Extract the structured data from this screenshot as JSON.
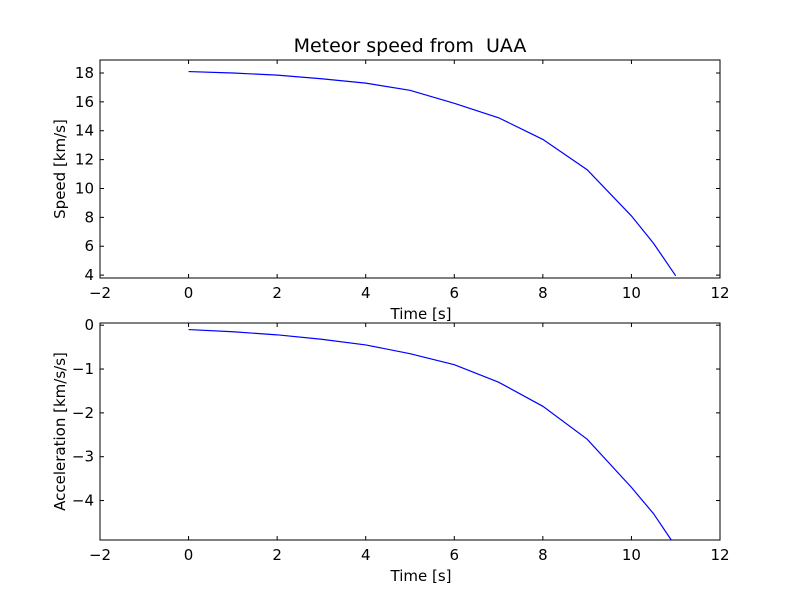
{
  "chart_data": [
    {
      "type": "line",
      "title": "Meteor speed from  UAA",
      "xlabel": "Time [s]",
      "ylabel": "Speed [km/s]",
      "xlim": [
        -2,
        12
      ],
      "ylim": [
        3.8,
        18.9
      ],
      "xticks": [
        -2,
        0,
        2,
        4,
        6,
        8,
        10,
        12
      ],
      "yticks": [
        4,
        6,
        8,
        10,
        12,
        14,
        16,
        18
      ],
      "xtick_labels": [
        "−2",
        "0",
        "2",
        "4",
        "6",
        "8",
        "10",
        "12"
      ],
      "ytick_labels": [
        "4",
        "6",
        "8",
        "10",
        "12",
        "14",
        "16",
        "18"
      ],
      "grid": false,
      "series": [
        {
          "color": "#0000ff",
          "x": [
            0,
            1,
            2,
            3,
            4,
            5,
            6,
            7,
            8,
            9,
            10,
            10.5,
            11
          ],
          "y": [
            18.1,
            18.0,
            17.85,
            17.6,
            17.3,
            16.8,
            15.9,
            14.9,
            13.4,
            11.3,
            8.1,
            6.2,
            3.95
          ]
        }
      ]
    },
    {
      "type": "line",
      "title": "",
      "xlabel": "Time [s]",
      "ylabel": "Acceleration [km/s/s]",
      "xlim": [
        -2,
        12
      ],
      "ylim": [
        -4.9,
        0.05
      ],
      "xticks": [
        -2,
        0,
        2,
        4,
        6,
        8,
        10,
        12
      ],
      "yticks": [
        0,
        -1,
        -2,
        -3,
        -4
      ],
      "xtick_labels": [
        "−2",
        "0",
        "2",
        "4",
        "6",
        "8",
        "10",
        "12"
      ],
      "ytick_labels": [
        "0",
        "−1",
        "−2",
        "−3",
        "−4"
      ],
      "grid": false,
      "series": [
        {
          "color": "#0000ff",
          "x": [
            0,
            1,
            2,
            3,
            4,
            5,
            6,
            7,
            8,
            9,
            10,
            10.5,
            10.9
          ],
          "y": [
            -0.1,
            -0.15,
            -0.22,
            -0.32,
            -0.45,
            -0.65,
            -0.9,
            -1.3,
            -1.85,
            -2.6,
            -3.7,
            -4.3,
            -4.9
          ]
        }
      ]
    }
  ]
}
